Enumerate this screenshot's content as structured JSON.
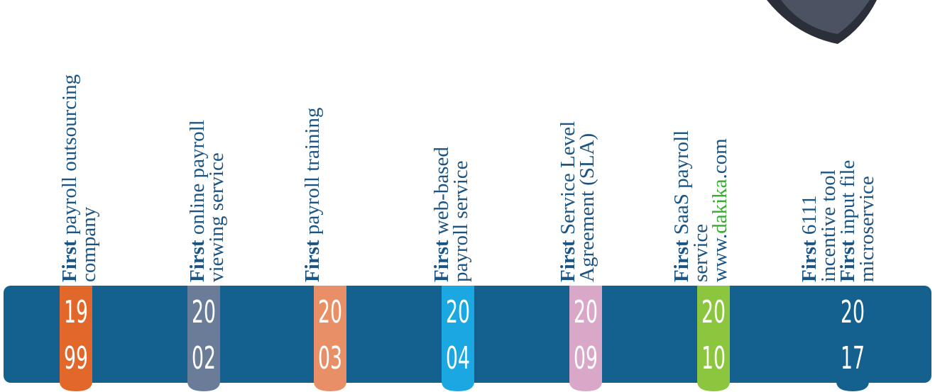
{
  "items": [
    {
      "year": [
        "19",
        "99"
      ],
      "color": "#e2672a",
      "lines": [
        [
          {
            "text": "First",
            "bold": true
          },
          {
            "text": " payroll outsourcing"
          }
        ],
        [
          {
            "text": "company"
          }
        ]
      ]
    },
    {
      "year": [
        "20",
        "02"
      ],
      "color": "#6b7c98",
      "lines": [
        [
          {
            "text": "First",
            "bold": true
          },
          {
            "text": " online payroll"
          }
        ],
        [
          {
            "text": "viewing service"
          }
        ]
      ]
    },
    {
      "year": [
        "20",
        "03"
      ],
      "color": "#e98f68",
      "lines": [
        [
          {
            "text": "First",
            "bold": true
          },
          {
            "text": " payroll training"
          }
        ]
      ]
    },
    {
      "year": [
        "20",
        "04"
      ],
      "color": "#1ba7e1",
      "lines": [
        [
          {
            "text": "First",
            "bold": true
          },
          {
            "text": " web-based"
          }
        ],
        [
          {
            "text": "payroll service"
          }
        ]
      ]
    },
    {
      "year": [
        "20",
        "09"
      ],
      "color": "#d9a7c7",
      "lines": [
        [
          {
            "text": "First",
            "bold": true
          },
          {
            "text": " Service Level"
          }
        ],
        [
          {
            "text": "Agreement (SLA)"
          }
        ]
      ]
    },
    {
      "year": [
        "20",
        "10"
      ],
      "color": "#8cc63f",
      "lines": [
        [
          {
            "text": "First",
            "bold": true
          },
          {
            "text": " SaaS payroll"
          }
        ],
        [
          {
            "text": "service"
          }
        ],
        [
          {
            "text": "www."
          },
          {
            "text": "dakika",
            "color": "#3aaa35"
          },
          {
            "text": ".com"
          }
        ]
      ]
    },
    {
      "year": [
        "20",
        "17"
      ],
      "color": "#14608f",
      "lines": [
        [
          {
            "text": "First",
            "bold": true
          },
          {
            "text": " 6111"
          }
        ],
        [
          {
            "text": "incentive tool"
          }
        ],
        [
          {
            "text": "First",
            "bold": true
          },
          {
            "text": " input file"
          }
        ],
        [
          {
            "text": "microservice"
          }
        ]
      ]
    }
  ]
}
